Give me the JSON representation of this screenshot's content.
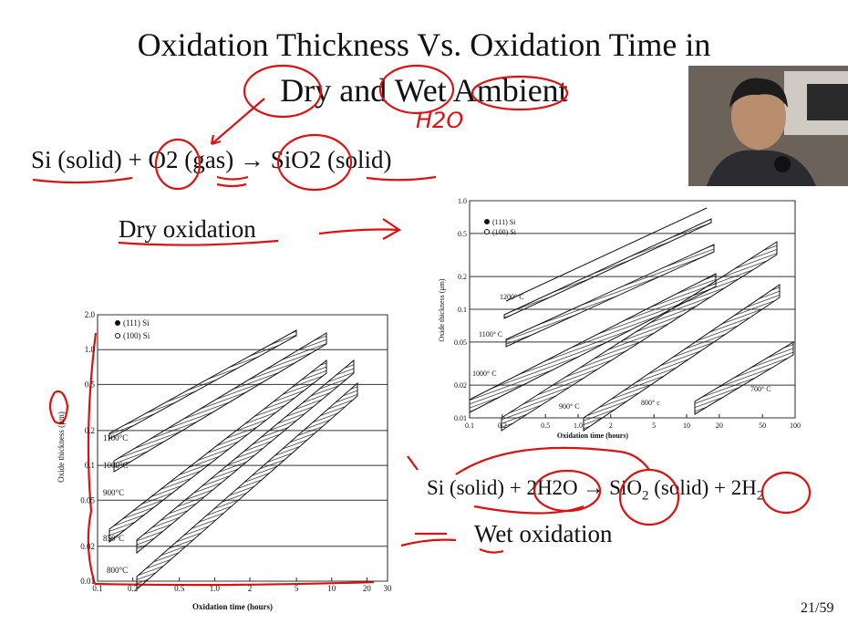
{
  "title": [
    "Oxidation Thickness Vs. Oxidation Time in",
    "Dry and Wet Ambient"
  ],
  "handwritten_note": "H2O",
  "dry_equation": "Si (solid) + O2 (gas) → SiO2 (solid)",
  "dry_label": "Dry oxidation",
  "wet_equation": [
    "Si (solid) + 2H2O → SiO",
    "2",
    " (solid) + 2H",
    "2"
  ],
  "wet_label": "Wet oxidation",
  "page_number": "21/59",
  "charts": [
    {
      "y_label": "Oxide thickness (μm)",
      "x_label": "Oxidation time (hours)",
      "legend": [
        "(111) Si",
        "(100) Si"
      ],
      "xlim": [
        0.1,
        100
      ],
      "ylim": [
        0.01,
        1
      ],
      "xticks": [
        0.1,
        0.2,
        0.5,
        {
          "value": 1,
          "label": "1.0"
        },
        2,
        5,
        10,
        20,
        50,
        100
      ],
      "yticks": [
        0.01,
        0.02,
        0.05,
        0.1,
        0.2,
        0.5,
        {
          "value": 1,
          "label": "1.0"
        }
      ],
      "band_labels": [
        "1200° C",
        "1100° C",
        "1000° C",
        "900° C",
        "800° c",
        "700° C"
      ]
    },
    {
      "y_label": "Oxide thickness (μm)",
      "x_label": "Oxidation time (hours)",
      "legend": [
        "(111) Si",
        "(100) Si"
      ],
      "xlim": [
        0.1,
        30
      ],
      "ylim": [
        0.01,
        2
      ],
      "xticks": [
        0.1,
        0.2,
        0.5,
        {
          "value": 1,
          "label": "1.0"
        },
        2,
        5,
        10,
        20,
        30
      ],
      "yticks": [
        0.01,
        0.02,
        0.05,
        0.1,
        0.2,
        0.5,
        {
          "value": 1,
          "label": "1.0"
        },
        {
          "value": 2,
          "label": "2.0"
        }
      ],
      "band_labels": [
        "1100°C",
        "1000°C",
        "900°C",
        "850°C",
        "800°C"
      ]
    }
  ]
}
